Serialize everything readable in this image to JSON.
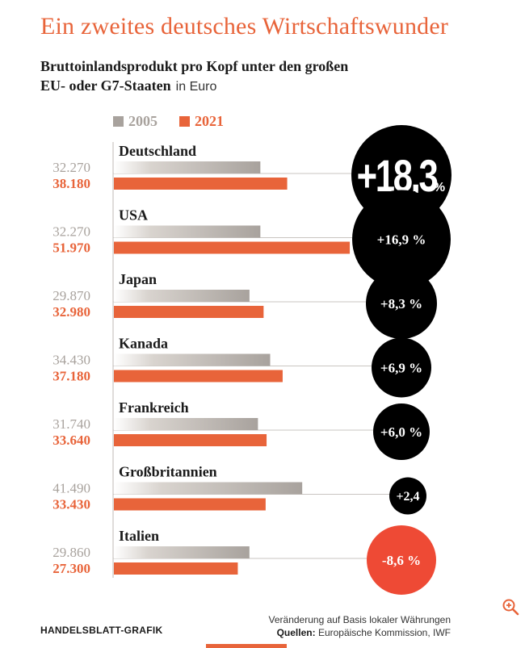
{
  "headline": "Ein zweites deutsches Wirtschaftswunder",
  "subtitle_line1": "Bruttoinlandsprodukt pro Kopf unter den großen",
  "subtitle_line2": "EU- oder G7-Staaten",
  "subtitle_unit": "in Euro",
  "legend": {
    "y2005": "2005",
    "y2021": "2021"
  },
  "footer": {
    "credit": "HANDELSBLATT-GRAFIK",
    "note": "Veränderung auf Basis lokaler Währungen",
    "sources_label": "Quellen:",
    "sources_text": "Europäische Kommission, IWF"
  },
  "colors": {
    "y2005": "#a8a29d",
    "y2021": "#e8643a",
    "bubble": "#000000",
    "bubble_negative": "#ee4a35"
  },
  "icons": {
    "zoom": "zoom-in-icon"
  },
  "chart_data": {
    "type": "bar",
    "orientation": "horizontal",
    "title": "Bruttoinlandsprodukt pro Kopf unter den großen EU- oder G7-Staaten",
    "unit": "Euro",
    "series_names": [
      "2005",
      "2021"
    ],
    "xlim": [
      0,
      60000
    ],
    "categories": [
      {
        "name": "Deutschland",
        "v2005": 32270,
        "v2021": 38180,
        "l2005": "32.270",
        "l2021": "38.180",
        "change": "+18,3",
        "change_num": 18.3,
        "suffix": "%"
      },
      {
        "name": "USA",
        "v2005": 32270,
        "v2021": 51970,
        "l2005": "32.270",
        "l2021": "51.970",
        "change": "+16,9 %",
        "change_num": 16.9,
        "suffix": ""
      },
      {
        "name": "Japan",
        "v2005": 29870,
        "v2021": 32980,
        "l2005": "29.870",
        "l2021": "32.980",
        "change": "+8,3 %",
        "change_num": 8.3,
        "suffix": ""
      },
      {
        "name": "Kanada",
        "v2005": 34430,
        "v2021": 37180,
        "l2005": "34.430",
        "l2021": "37.180",
        "change": "+6,9 %",
        "change_num": 6.9,
        "suffix": ""
      },
      {
        "name": "Frankreich",
        "v2005": 31740,
        "v2021": 33640,
        "l2005": "31.740",
        "l2021": "33.640",
        "change": "+6,0 %",
        "change_num": 6.0,
        "suffix": ""
      },
      {
        "name": "Großbritannien",
        "v2005": 41490,
        "v2021": 33430,
        "l2005": "41.490",
        "l2021": "33.430",
        "change": "+2,4",
        "change_num": 2.4,
        "suffix": ""
      },
      {
        "name": "Italien",
        "v2005": 29860,
        "v2021": 27300,
        "l2005": "29.860",
        "l2021": "27.300",
        "change": "-8,6 %",
        "change_num": -8.6,
        "suffix": ""
      }
    ]
  }
}
